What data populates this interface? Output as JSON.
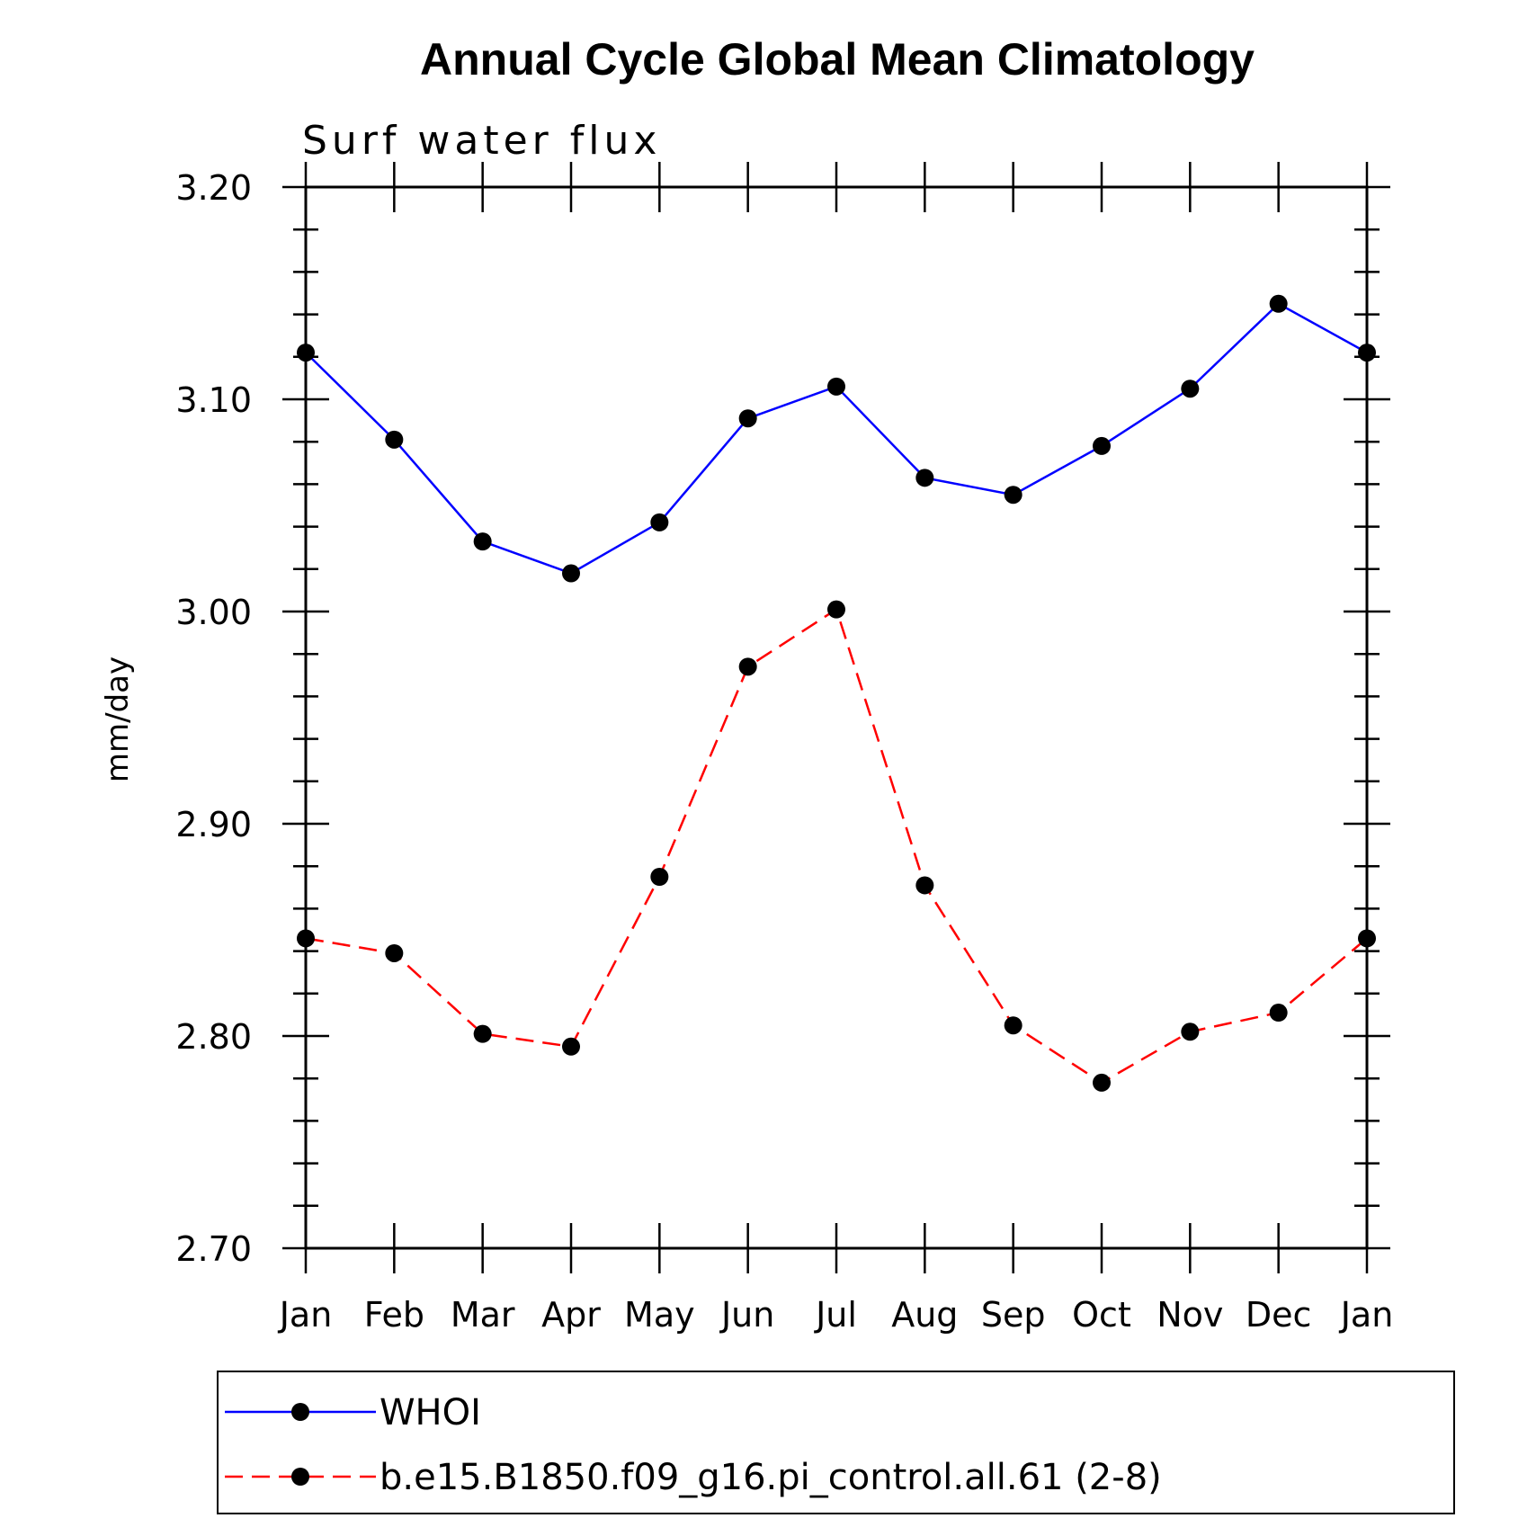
{
  "chart_data": {
    "type": "line",
    "title": "Annual Cycle Global Mean Climatology",
    "subtitle": "Surf water flux",
    "xlabel": "",
    "ylabel": "mm/day",
    "ylim": [
      2.7,
      3.2
    ],
    "yticks": [
      "2.70",
      "2.80",
      "2.90",
      "3.00",
      "3.10",
      "3.20"
    ],
    "categories": [
      "Jan",
      "Feb",
      "Mar",
      "Apr",
      "May",
      "Jun",
      "Jul",
      "Aug",
      "Sep",
      "Oct",
      "Nov",
      "Dec",
      "Jan"
    ],
    "series": [
      {
        "name": "WHOI",
        "color": "#0000ff",
        "dash": "solid",
        "values": [
          3.122,
          3.081,
          3.033,
          3.018,
          3.042,
          3.091,
          3.106,
          3.063,
          3.055,
          3.078,
          3.105,
          3.145,
          3.122
        ]
      },
      {
        "name": "b.e15.B1850.f09_g16.pi_control.all.61 (2-8)",
        "color": "#ff0000",
        "dash": "dashed",
        "values": [
          2.846,
          2.839,
          2.801,
          2.795,
          2.875,
          2.974,
          3.001,
          2.871,
          2.805,
          2.778,
          2.802,
          2.811,
          2.846
        ]
      }
    ],
    "legend_position": "bottom"
  }
}
